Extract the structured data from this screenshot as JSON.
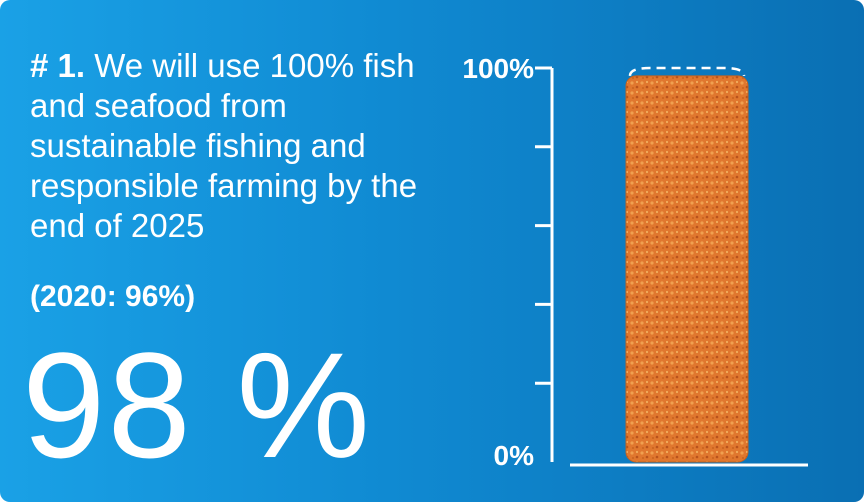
{
  "headline": {
    "goal_number": "# 1.",
    "goal_text": "We will use 100% fish and seafood from sustainable fishing and responsible farming by the end of 2025"
  },
  "baseline": "(2020: 96%)",
  "big_value": "98 %",
  "colors": {
    "background_light": "#1aa1e6",
    "background_dark": "#0a6fb3",
    "text": "#ffffff",
    "fish_stick": "#e0772e"
  },
  "chart_data": {
    "type": "bar",
    "categories": [
      ""
    ],
    "values": [
      98
    ],
    "target": 100,
    "ylim": [
      0,
      100
    ],
    "y_tick_labels": [
      "0%",
      "100%"
    ],
    "unlabeled_ticks": 4,
    "title": "",
    "xlabel": "",
    "ylabel": ""
  }
}
